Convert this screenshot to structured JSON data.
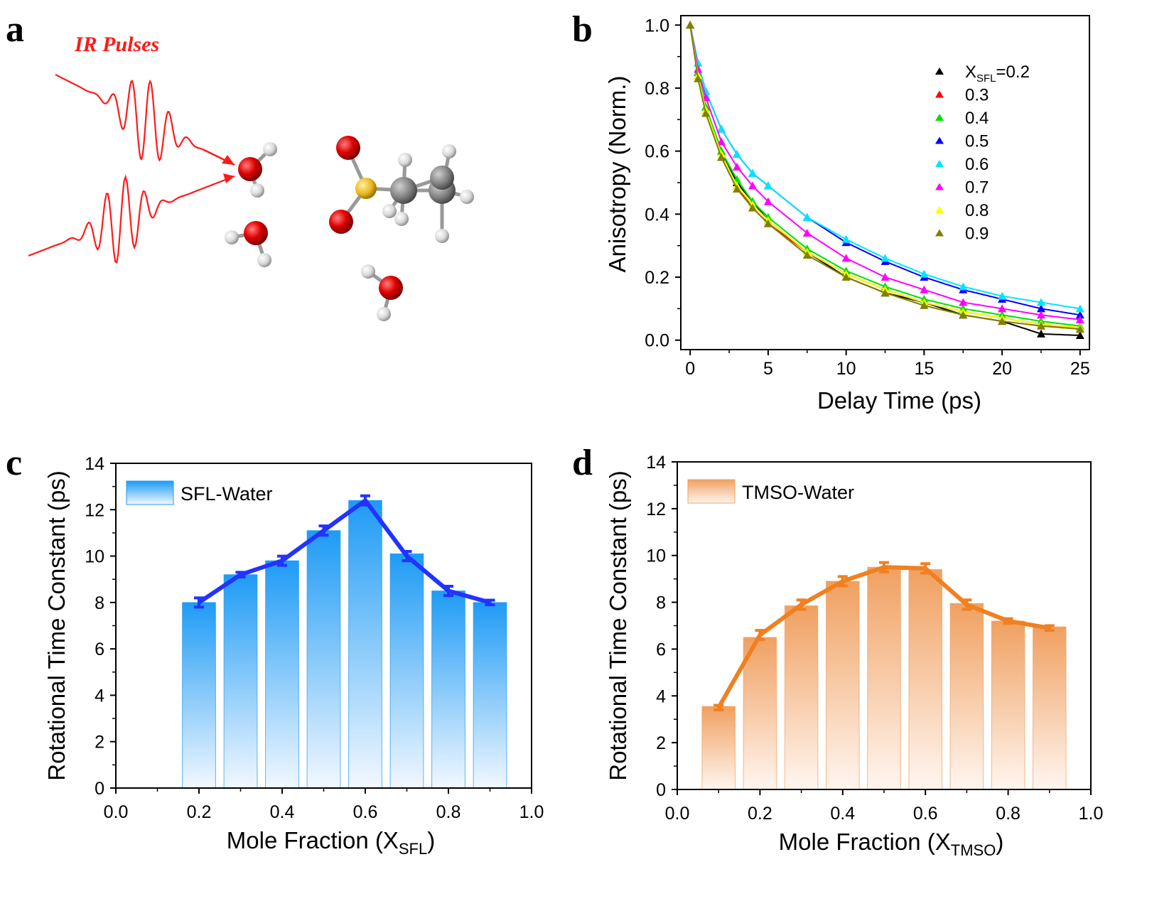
{
  "panels": {
    "a": "a",
    "b": "b",
    "c": "c",
    "d": "d"
  },
  "panel_a": {
    "label": "IR Pulses",
    "pulse_color": "#ff1a1a"
  },
  "chart_data": [
    {
      "id": "b",
      "type": "scatter",
      "xlabel": "Delay Time (ps)",
      "ylabel": "Anisotropy (Norm.)",
      "xlim": [
        -0.6,
        25.6
      ],
      "ylim": [
        -0.03,
        1.03
      ],
      "xticks": [
        "0",
        "5",
        "10",
        "15",
        "20",
        "25"
      ],
      "yticks": [
        "0.0",
        "0.2",
        "0.4",
        "0.6",
        "0.8",
        "1.0"
      ],
      "legend_position": "top-right",
      "legend_prefix": "X",
      "legend_sub": "SFL",
      "legend_first_suffix": "=0.2",
      "x": [
        0,
        0.5,
        1,
        2,
        3,
        4,
        5,
        7.5,
        10,
        12.5,
        15,
        17.5,
        20,
        22.5,
        25
      ],
      "series": [
        {
          "name": "0.2",
          "color": "#000000",
          "values": [
            1.0,
            0.85,
            0.74,
            0.6,
            0.5,
            0.44,
            0.38,
            0.28,
            0.2,
            0.15,
            0.12,
            0.08,
            0.06,
            0.02,
            0.015
          ]
        },
        {
          "name": "0.3",
          "color": "#ff0000",
          "values": [
            1.0,
            0.84,
            0.73,
            0.58,
            0.49,
            0.42,
            0.37,
            0.28,
            0.21,
            0.16,
            0.12,
            0.09,
            0.07,
            0.05,
            0.035
          ]
        },
        {
          "name": "0.4",
          "color": "#00e000",
          "values": [
            1.0,
            0.85,
            0.74,
            0.6,
            0.51,
            0.44,
            0.39,
            0.29,
            0.22,
            0.17,
            0.13,
            0.1,
            0.08,
            0.06,
            0.045
          ]
        },
        {
          "name": "0.5",
          "color": "#0000ff",
          "values": [
            1.0,
            0.88,
            0.79,
            0.67,
            0.59,
            0.53,
            0.49,
            0.39,
            0.31,
            0.25,
            0.2,
            0.16,
            0.13,
            0.1,
            0.08
          ]
        },
        {
          "name": "0.6",
          "color": "#00e5ff",
          "values": [
            1.0,
            0.88,
            0.79,
            0.67,
            0.59,
            0.53,
            0.49,
            0.39,
            0.32,
            0.26,
            0.21,
            0.17,
            0.14,
            0.12,
            0.1
          ]
        },
        {
          "name": "0.7",
          "color": "#ff00ff",
          "values": [
            1.0,
            0.86,
            0.77,
            0.63,
            0.55,
            0.49,
            0.44,
            0.34,
            0.26,
            0.2,
            0.16,
            0.12,
            0.1,
            0.08,
            0.065
          ]
        },
        {
          "name": "0.8",
          "color": "#ffff00",
          "values": [
            1.0,
            0.84,
            0.73,
            0.59,
            0.49,
            0.43,
            0.38,
            0.28,
            0.21,
            0.16,
            0.12,
            0.09,
            0.07,
            0.05,
            0.04
          ]
        },
        {
          "name": "0.9",
          "color": "#808000",
          "values": [
            1.0,
            0.83,
            0.72,
            0.58,
            0.48,
            0.42,
            0.37,
            0.27,
            0.2,
            0.15,
            0.11,
            0.08,
            0.06,
            0.045,
            0.035
          ]
        }
      ]
    },
    {
      "id": "c",
      "type": "bar",
      "xlabel_main": "Mole Fraction (X",
      "xlabel_sub": "SFL",
      "xlabel_end": ")",
      "ylabel": "Rotational Time Constant (ps)",
      "xlim": [
        0,
        1
      ],
      "ylim": [
        0,
        14
      ],
      "xticks": [
        "0.0",
        "0.2",
        "0.4",
        "0.6",
        "0.8",
        "1.0"
      ],
      "yticks": [
        "0",
        "2",
        "4",
        "6",
        "8",
        "10",
        "12",
        "14"
      ],
      "legend": "SFL-Water",
      "legend_position": "top-left",
      "bar_color_top": "#1e9bf5",
      "bar_color_bottom": "#f2f8ff",
      "line_color": "#2233ff",
      "categories": [
        0.2,
        0.3,
        0.4,
        0.5,
        0.6,
        0.7,
        0.8,
        0.9
      ],
      "values": [
        8.0,
        9.2,
        9.8,
        11.1,
        12.4,
        10.1,
        8.5,
        8.0
      ],
      "line_values": [
        8.0,
        9.2,
        9.8,
        11.1,
        12.4,
        10.0,
        8.5,
        8.0
      ],
      "errors": [
        0.2,
        0.1,
        0.2,
        0.2,
        0.2,
        0.2,
        0.2,
        0.1
      ]
    },
    {
      "id": "d",
      "type": "bar",
      "xlabel_main": "Mole Fraction (X",
      "xlabel_sub": "TMSO",
      "xlabel_end": ")",
      "ylabel": "Rotational Time Constant (ps)",
      "xlim": [
        0,
        1
      ],
      "ylim": [
        0,
        14
      ],
      "xticks": [
        "0.0",
        "0.2",
        "0.4",
        "0.6",
        "0.8",
        "1.0"
      ],
      "yticks": [
        "0",
        "2",
        "4",
        "6",
        "8",
        "10",
        "12",
        "14"
      ],
      "legend": "TMSO-Water",
      "legend_position": "top-left",
      "bar_color_top": "#f0a060",
      "bar_color_bottom": "#fff6f0",
      "line_color": "#f08020",
      "categories": [
        0.1,
        0.2,
        0.3,
        0.4,
        0.5,
        0.6,
        0.7,
        0.8,
        0.9
      ],
      "values": [
        3.55,
        6.5,
        7.85,
        8.9,
        9.5,
        9.4,
        7.95,
        7.2,
        6.95
      ],
      "line_values": [
        3.5,
        6.6,
        7.9,
        8.9,
        9.5,
        9.45,
        7.9,
        7.2,
        6.9
      ],
      "errors": [
        0.1,
        0.2,
        0.2,
        0.2,
        0.2,
        0.2,
        0.2,
        0.1,
        0.1
      ]
    }
  ]
}
